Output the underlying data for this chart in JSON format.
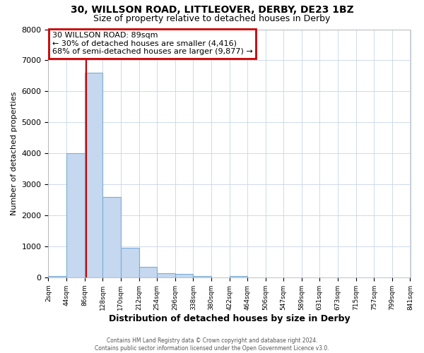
{
  "title_line1": "30, WILLSON ROAD, LITTLEOVER, DERBY, DE23 1BZ",
  "title_line2": "Size of property relative to detached houses in Derby",
  "xlabel": "Distribution of detached houses by size in Derby",
  "ylabel": "Number of detached properties",
  "bin_edges": [
    2,
    44,
    86,
    128,
    170,
    212,
    254,
    296,
    338,
    380,
    422,
    464,
    506,
    547,
    589,
    631,
    673,
    715,
    757,
    799,
    841
  ],
  "bar_heights": [
    50,
    4000,
    6600,
    2600,
    950,
    330,
    130,
    100,
    50,
    0,
    50,
    0,
    0,
    0,
    0,
    0,
    0,
    0,
    0,
    0
  ],
  "bar_color": "#c5d8f0",
  "bar_edge_color": "#7aadd4",
  "property_size": 89,
  "vline_color": "#cc0000",
  "ylim": [
    0,
    8000
  ],
  "yticks": [
    0,
    1000,
    2000,
    3000,
    4000,
    5000,
    6000,
    7000,
    8000
  ],
  "xtick_labels": [
    "2sqm",
    "44sqm",
    "86sqm",
    "128sqm",
    "170sqm",
    "212sqm",
    "254sqm",
    "296sqm",
    "338sqm",
    "380sqm",
    "422sqm",
    "464sqm",
    "506sqm",
    "547sqm",
    "589sqm",
    "631sqm",
    "673sqm",
    "715sqm",
    "757sqm",
    "799sqm",
    "841sqm"
  ],
  "annotation_title": "30 WILLSON ROAD: 89sqm",
  "annotation_line2": "← 30% of detached houses are smaller (4,416)",
  "annotation_line3": "68% of semi-detached houses are larger (9,877) →",
  "annotation_box_color": "#cc0000",
  "annotation_bg_color": "#ffffff",
  "grid_color": "#c8d4e8",
  "plot_bg_color": "#ffffff",
  "fig_bg_color": "#ffffff",
  "footer_line1": "Contains HM Land Registry data © Crown copyright and database right 2024.",
  "footer_line2": "Contains public sector information licensed under the Open Government Licence v3.0."
}
